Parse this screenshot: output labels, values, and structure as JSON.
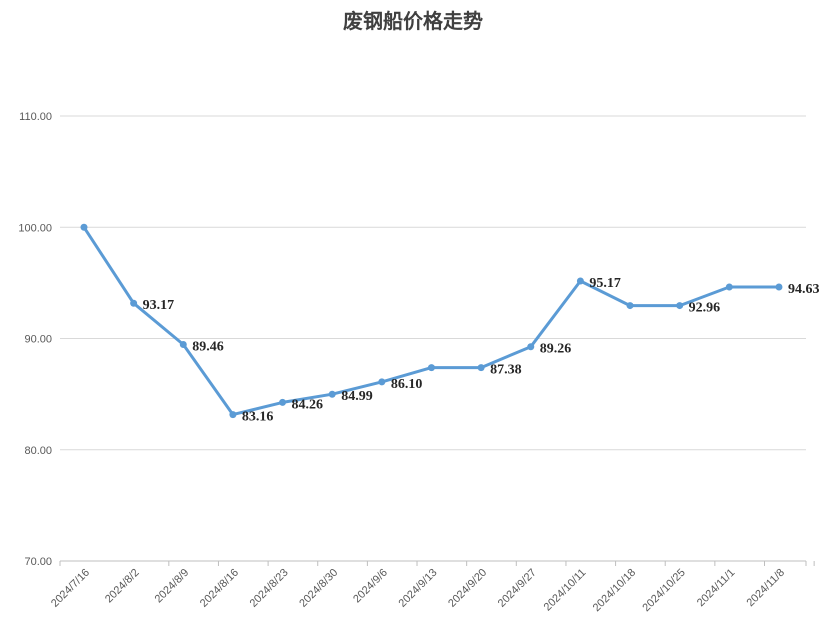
{
  "chart_data": {
    "type": "line",
    "title": "废钢船价格走势",
    "xlabel": "",
    "ylabel": "",
    "categories": [
      "2024/7/16",
      "2024/8/2",
      "2024/8/9",
      "2024/8/16",
      "2024/8/23",
      "2024/8/30",
      "2024/9/6",
      "2024/9/13",
      "2024/9/20",
      "2024/9/27",
      "2024/10/11",
      "2024/10/18",
      "2024/10/25",
      "2024/11/1",
      "2024/11/8"
    ],
    "series": [
      {
        "values": [
          100.0,
          93.17,
          89.46,
          83.16,
          84.26,
          84.99,
          86.1,
          87.38,
          87.38,
          89.26,
          95.17,
          92.96,
          92.96,
          94.63,
          94.63
        ],
        "color": "#5b9bd5"
      }
    ],
    "data_labels": [
      {
        "index": 1,
        "text": "93.17"
      },
      {
        "index": 2,
        "text": "89.46"
      },
      {
        "index": 3,
        "text": "83.16"
      },
      {
        "index": 4,
        "text": "84.26"
      },
      {
        "index": 5,
        "text": "84.99"
      },
      {
        "index": 6,
        "text": "86.10"
      },
      {
        "index": 8,
        "text": "87.38"
      },
      {
        "index": 9,
        "text": "89.26"
      },
      {
        "index": 10,
        "text": "95.17"
      },
      {
        "index": 12,
        "text": "92.96"
      },
      {
        "index": 14,
        "text": "94.63"
      }
    ],
    "y_ticks": [
      "70.00",
      "80.00",
      "90.00",
      "100.00",
      "110.00"
    ],
    "ylim": [
      70,
      110
    ],
    "grid": true,
    "legend": "none"
  }
}
